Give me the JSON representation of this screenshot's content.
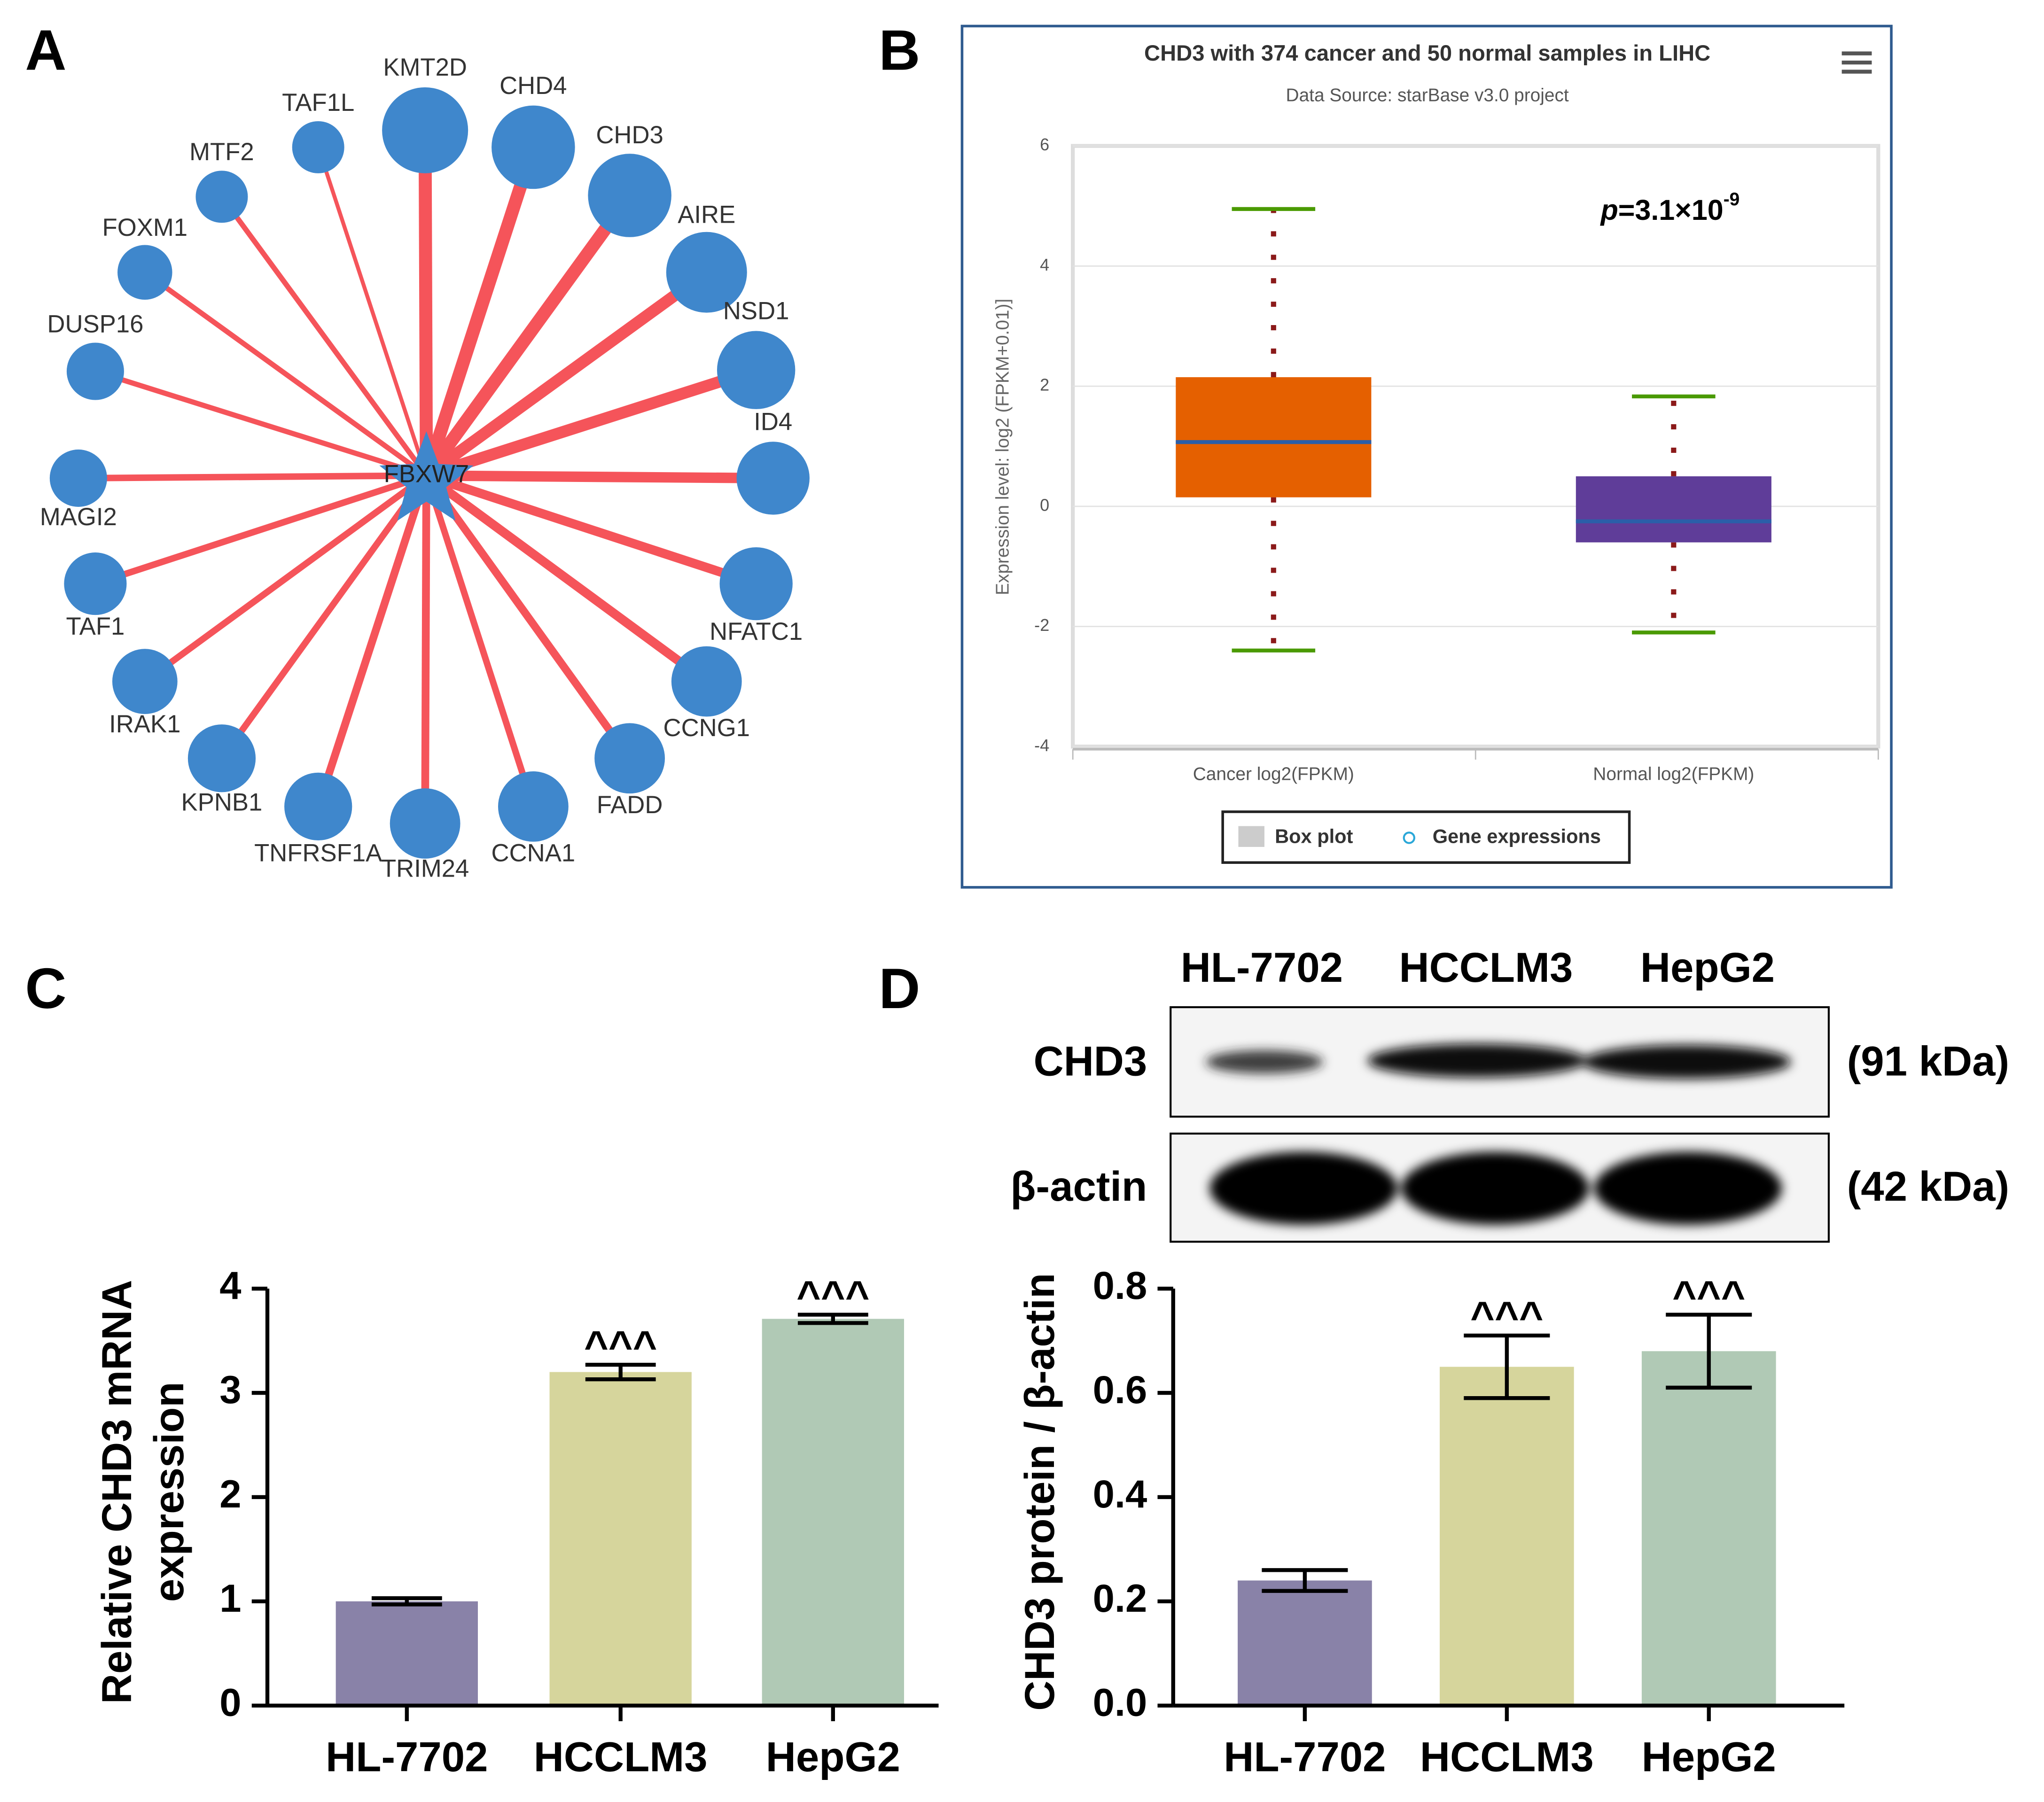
{
  "panel_labels": [
    "A",
    "B",
    "C",
    "D"
  ],
  "network": {
    "center": "FBXW7",
    "nodes": [
      "KMT2D",
      "CHD4",
      "CHD3",
      "AIRE",
      "NSD1",
      "ID4",
      "NFATC1",
      "CCNG1",
      "FADD",
      "CCNA1",
      "TRIM24",
      "TNFRSF1A",
      "KPNB1",
      "IRAK1",
      "TAF1",
      "MAGI2",
      "DUSP16",
      "FOXM1",
      "MTF2",
      "TAF1L"
    ]
  },
  "chart_data": [
    {
      "type": "box",
      "title": "CHD3 with 374 cancer and 50 normal samples in LIHC",
      "subtitle": "Data Source: starBase v3.0 project",
      "ylabel": "Expression level: log2 (FPKM+0.01)]",
      "categories": [
        "Cancer log2(FPKM)",
        "Normal log2(FPKM)"
      ],
      "boxes": [
        {
          "whislo": -2.4,
          "q1": 0.15,
          "med": 1.07,
          "q3": 2.15,
          "whishi": 4.95
        },
        {
          "whislo": -2.1,
          "q1": -0.6,
          "med": -0.25,
          "q3": 0.5,
          "whishi": 1.83
        }
      ],
      "colors": [
        "#e56000",
        "#5f3d99"
      ],
      "median_color": "#2b5ea8",
      "whisker_color": "#4a9a00",
      "dot_color": "#8b1a1a",
      "ylim": [
        -4,
        6
      ],
      "yticks": [
        -4,
        -2,
        0,
        2,
        4,
        6
      ],
      "grid": true,
      "annotation": {
        "italic": "p",
        "text": "=3.1×10",
        "superscript": "-9"
      },
      "legend": [
        "Box plot",
        "Gene expressions"
      ]
    },
    {
      "type": "bar",
      "ylabel": [
        "Relative CHD3 mRNA",
        "expression"
      ],
      "categories": [
        "HL-7702",
        "HCCLM3",
        "HepG2"
      ],
      "values": [
        1.0,
        3.2,
        3.71
      ],
      "errors": [
        0.03,
        0.07,
        0.04
      ],
      "colors": [
        "#8982a8",
        "#d6d59c",
        "#b0c9b5"
      ],
      "annotations": [
        null,
        "^^^",
        "^^^"
      ],
      "ylim": [
        0,
        4
      ],
      "yticks": [
        0,
        1,
        2,
        3,
        4
      ]
    },
    {
      "type": "bar",
      "ylabel": [
        "CHD3 protein / β-actin"
      ],
      "categories": [
        "HL-7702",
        "HCCLM3",
        "HepG2"
      ],
      "values": [
        0.24,
        0.65,
        0.68
      ],
      "errors": [
        0.02,
        0.06,
        0.07
      ],
      "colors": [
        "#8982a8",
        "#d6d59c",
        "#b0c9b5"
      ],
      "annotations": [
        null,
        "^^^",
        "^^^"
      ],
      "ylim": [
        0,
        0.8
      ],
      "yticks": [
        {
          "value": 0,
          "label": "0.0"
        },
        0.2,
        0.4,
        0.6,
        0.8
      ]
    }
  ],
  "blot": {
    "lanes": [
      "HL-7702",
      "HCCLM3",
      "HepG2"
    ],
    "rows": [
      {
        "protein": "CHD3",
        "size": "(91 kDa)"
      },
      {
        "protein": "β-actin",
        "size": "(42 kDa)"
      }
    ]
  }
}
